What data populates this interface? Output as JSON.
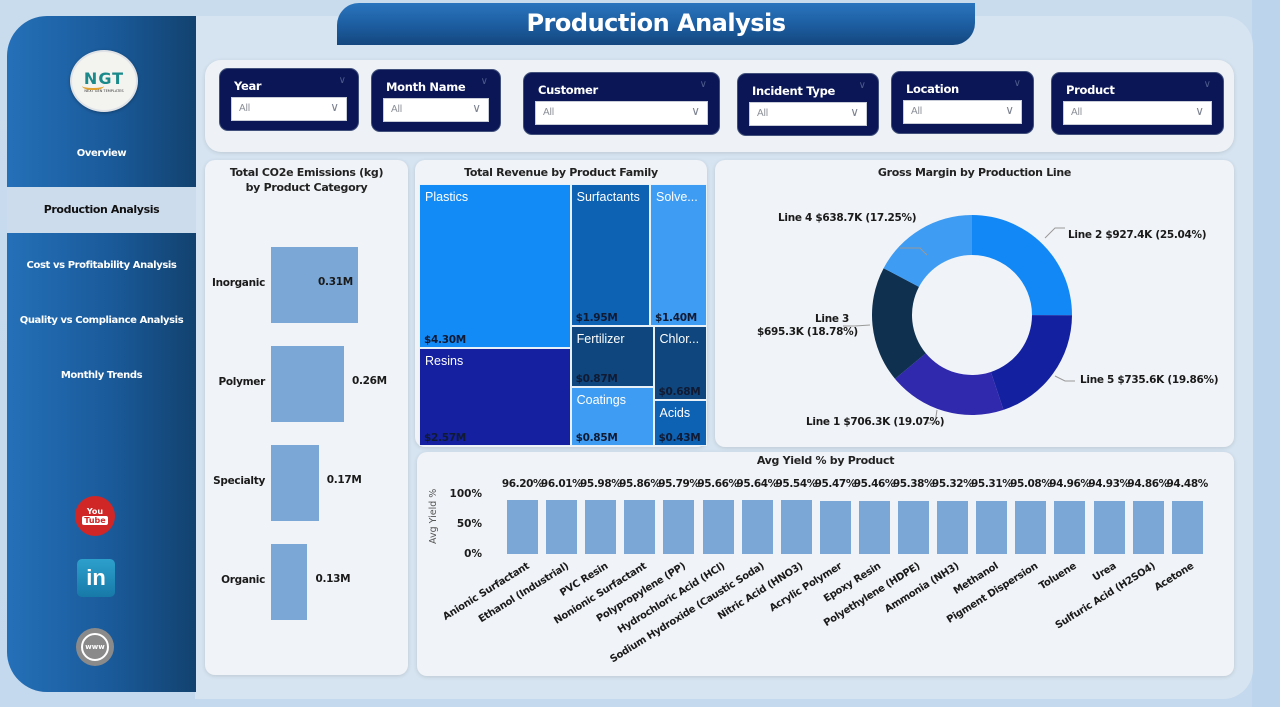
{
  "header": {
    "title": "Production Analysis"
  },
  "sidebar": {
    "logo": {
      "text": "NGT",
      "subtext": "NEXT GEN TEMPLATES"
    },
    "items": [
      {
        "label": "Overview",
        "active": false
      },
      {
        "label": "Production Analysis",
        "active": true
      },
      {
        "label": "Cost vs Profitability Analysis",
        "active": false
      },
      {
        "label": "Quality vs Compliance Analysis",
        "active": false
      },
      {
        "label": "Monthly Trends",
        "active": false
      }
    ],
    "social": [
      {
        "icon": "youtube-icon",
        "top": "You",
        "bottom": "Tube"
      },
      {
        "icon": "linkedin-icon",
        "text": "in"
      },
      {
        "icon": "website-globe-icon",
        "text": "www"
      }
    ]
  },
  "filters": [
    {
      "label": "Year",
      "value": "All"
    },
    {
      "label": "Month Name",
      "value": "All"
    },
    {
      "label": "Customer",
      "value": "All"
    },
    {
      "label": "Incident Type",
      "value": "All"
    },
    {
      "label": "Location",
      "value": "All"
    },
    {
      "label": "Product",
      "value": "All"
    }
  ],
  "colors": {
    "bar": "#7ba7d6",
    "slicer_bg": "#0b1656",
    "sidebar": "#1a5a9a"
  },
  "chart_data": [
    {
      "id": "co2",
      "type": "bar",
      "orientation": "horizontal",
      "title": "Total CO2e Emissions (kg) by Product Category",
      "categories": [
        "Inorganic",
        "Polymer",
        "Specialty",
        "Organic"
      ],
      "values": [
        0.31,
        0.26,
        0.17,
        0.13
      ],
      "value_labels": [
        "0.31M",
        "0.26M",
        "0.17M",
        "0.13M"
      ],
      "unit": "M kg",
      "xlim": [
        0,
        0.31
      ]
    },
    {
      "id": "revenue",
      "type": "treemap",
      "title": "Total Revenue by Product Family",
      "items": [
        {
          "name": "Plastics",
          "value": 4.3,
          "label": "$4.30M",
          "color": "#138bf7"
        },
        {
          "name": "Resins",
          "value": 2.57,
          "label": "$2.57M",
          "color": "#1420a0"
        },
        {
          "name": "Surfactants",
          "value": 1.95,
          "label": "$1.95M",
          "color": "#0e62b4"
        },
        {
          "name": "Solve...",
          "value": 1.4,
          "label": "$1.40M",
          "color": "#3e9cf3"
        },
        {
          "name": "Fertilizer",
          "value": 0.87,
          "label": "$0.87M",
          "color": "#0e467d"
        },
        {
          "name": "Coatings",
          "value": 0.85,
          "label": "$0.85M",
          "color": "#3e9cf3"
        },
        {
          "name": "Chlor...",
          "value": 0.68,
          "label": "$0.68M",
          "color": "#0e467d"
        },
        {
          "name": "Acids",
          "value": 0.43,
          "label": "$0.43M",
          "color": "#0e62b4"
        }
      ],
      "unit": "$M"
    },
    {
      "id": "gross_margin",
      "type": "pie",
      "donut": true,
      "title": "Gross Margin by Production Line",
      "slices": [
        {
          "name": "Line 2",
          "value": 927.4,
          "pct": 25.04,
          "label": "Line 2 $927.4K (25.04%)",
          "color": "#1188f5"
        },
        {
          "name": "Line 5",
          "value": 735.6,
          "pct": 19.86,
          "label": "Line 5 $735.6K (19.86%)",
          "color": "#1320a0"
        },
        {
          "name": "Line 1",
          "value": 706.3,
          "pct": 19.07,
          "label": "Line 1 $706.3K (19.07%)",
          "color": "#3028ad"
        },
        {
          "name": "Line 3",
          "value": 695.3,
          "pct": 18.78,
          "label_line1": "Line 3",
          "label_line2": "$695.3K (18.78%)",
          "label": "Line 3 $695.3K (18.78%)",
          "color": "#10304f"
        },
        {
          "name": "Line 4",
          "value": 638.7,
          "pct": 17.25,
          "label": "Line 4 $638.7K (17.25%)",
          "color": "#3e9cf3"
        }
      ],
      "unit": "$K"
    },
    {
      "id": "yield",
      "type": "bar",
      "title": "Avg Yield % by Product",
      "ylabel": "Avg Yield %",
      "yticks": [
        "100%",
        "50%",
        "0%"
      ],
      "ylim": [
        0,
        100
      ],
      "categories": [
        "Anionic Surfactant",
        "Ethanol (Industrial)",
        "PVC Resin",
        "Nonionic Surfactant",
        "Polypropylene (PP)",
        "Hydrochloric Acid (HCl)",
        "Sodium Hydroxide (Caustic Soda)",
        "Nitric Acid (HNO3)",
        "Acrylic Polymer",
        "Epoxy Resin",
        "Polyethylene (HDPE)",
        "Ammonia (NH3)",
        "Methanol",
        "Pigment Dispersion",
        "Toluene",
        "Urea",
        "Sulfuric Acid (H2SO4)",
        "Acetone"
      ],
      "values": [
        96.2,
        96.01,
        95.98,
        95.86,
        95.79,
        95.66,
        95.64,
        95.54,
        95.47,
        95.46,
        95.38,
        95.32,
        95.31,
        95.08,
        94.96,
        94.93,
        94.86,
        94.48
      ],
      "value_labels": [
        "96.20%",
        "96.01%",
        "95.98%",
        "95.86%",
        "95.79%",
        "95.66%",
        "95.64%",
        "95.54%",
        "95.47%",
        "95.46%",
        "95.38%",
        "95.32%",
        "95.31%",
        "95.08%",
        "94.96%",
        "94.93%",
        "94.86%",
        "94.48%"
      ]
    }
  ]
}
